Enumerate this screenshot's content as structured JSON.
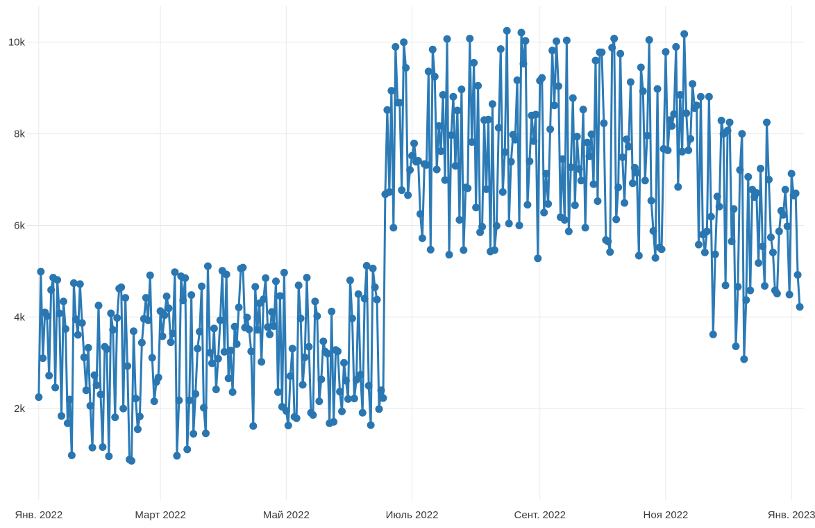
{
  "chart_data": {
    "type": "line",
    "title": "",
    "xlabel": "",
    "ylabel": "",
    "x_range": [
      "2021-12-26",
      "2023-01-07"
    ],
    "ylim": [
      0,
      10800
    ],
    "grid": true,
    "legend": "none",
    "x_ticks": [
      {
        "date": "2022-01-01",
        "label": "Янв. 2022"
      },
      {
        "date": "2022-03-01",
        "label": "Март 2022"
      },
      {
        "date": "2022-05-01",
        "label": "Май 2022"
      },
      {
        "date": "2022-07-01",
        "label": "Июль 2022"
      },
      {
        "date": "2022-09-01",
        "label": "Сент. 2022"
      },
      {
        "date": "2022-11-01",
        "label": "Ноя 2022"
      },
      {
        "date": "2023-01-01",
        "label": "Янв. 2023"
      }
    ],
    "y_ticks": [
      {
        "value": 2000,
        "label": "2k"
      },
      {
        "value": 4000,
        "label": "4k"
      },
      {
        "value": 6000,
        "label": "6k"
      },
      {
        "value": 8000,
        "label": "8k"
      },
      {
        "value": 10000,
        "label": "10k"
      }
    ],
    "series": [
      {
        "color": "#2c7bb6",
        "start_date": "2022-01-01",
        "values": [
          2250,
          4990,
          3100,
          4100,
          4020,
          2720,
          4590,
          4860,
          2460,
          4810,
          4080,
          1840,
          4340,
          3740,
          1680,
          2200,
          980,
          4740,
          3950,
          3610,
          4720,
          3870,
          3120,
          2400,
          3330,
          2060,
          1150,
          2730,
          2510,
          4250,
          2310,
          1160,
          3350,
          3300,
          960,
          4080,
          3720,
          1810,
          3980,
          4620,
          4650,
          2000,
          4420,
          2930,
          890,
          860,
          3690,
          2220,
          1550,
          1830,
          3440,
          3960,
          4420,
          3930,
          4910,
          3110,
          2160,
          2580,
          2680,
          4130,
          3580,
          4040,
          4450,
          4190,
          3450,
          3640,
          4980,
          970,
          2180,
          4890,
          4360,
          4850,
          1110,
          2180,
          4480,
          1450,
          2320,
          3310,
          3680,
          4670,
          2020,
          1460,
          5110,
          3220,
          2990,
          3750,
          2420,
          3090,
          3930,
          5010,
          3240,
          4930,
          2660,
          3270,
          2360,
          3790,
          3410,
          4210,
          5060,
          5080,
          3770,
          3990,
          3730,
          3250,
          1620,
          4660,
          3720,
          4300,
          3020,
          4390,
          4850,
          3780,
          3620,
          4110,
          3800,
          4780,
          2360,
          4460,
          2040,
          4970,
          1950,
          1630,
          2710,
          3310,
          1820,
          1790,
          4690,
          3970,
          2520,
          3120,
          4860,
          3350,
          1910,
          1860,
          4340,
          4020,
          2160,
          2640,
          3470,
          3240,
          3200,
          1680,
          4120,
          1710,
          3280,
          3250,
          2370,
          1940,
          3000,
          2610,
          2210,
          4800,
          3970,
          2220,
          2630,
          4500,
          2740,
          1910,
          4400,
          5120,
          2500,
          1640,
          5060,
          4650,
          4380,
          1990,
          2400,
          2230,
          6680,
          8520,
          6730,
          8940,
          5950,
          9900,
          8680,
          8680,
          6770,
          10000,
          9440,
          6660,
          7210,
          7520,
          7790,
          7390,
          7410,
          6250,
          5720,
          7340,
          7320,
          9360,
          5470,
          9840,
          9250,
          7220,
          8170,
          7620,
          8850,
          6990,
          10070,
          5360,
          7970,
          8810,
          7300,
          8510,
          6120,
          8970,
          5460,
          6830,
          6810,
          10080,
          7820,
          9550,
          6390,
          9050,
          5850,
          5970,
          8300,
          6790,
          8310,
          5430,
          8650,
          5460,
          5990,
          8130,
          9850,
          6730,
          7600,
          10250,
          6040,
          7390,
          7980,
          7870,
          9170,
          6000,
          10210,
          9530,
          10030,
          6450,
          7400,
          8400,
          7840,
          8420,
          5280,
          9160,
          9220,
          6280,
          7130,
          6470,
          8100,
          9820,
          8620,
          10020,
          9040,
          6180,
          7450,
          6120,
          10040,
          5870,
          7270,
          8780,
          6440,
          7940,
          7230,
          6980,
          8530,
          5950,
          7810,
          7510,
          7990,
          6900,
          9600,
          6530,
          9780,
          9780,
          8230,
          5680,
          5650,
          5420,
          9880,
          10080,
          6130,
          6830,
          9750,
          7490,
          6490,
          7880,
          7720,
          9130,
          6920,
          7260,
          7150,
          5340,
          9450,
          8930,
          6980,
          7960,
          10050,
          6540,
          5880,
          5290,
          8980,
          5520,
          5480,
          7670,
          9790,
          7640,
          8300,
          8170,
          8430,
          9900,
          6840,
          8850,
          7610,
          10180,
          8450,
          7640,
          7890,
          9090,
          8560,
          8620,
          5580,
          8810,
          5800,
          5410,
          5870,
          8810,
          6190,
          3620,
          5370,
          6630,
          6410,
          8290,
          8000,
          4690,
          8070,
          8250,
          5650,
          6360,
          3360,
          4660,
          7210,
          8000,
          3080,
          4370,
          7060,
          4580,
          6780,
          6620,
          6710,
          5180,
          7240,
          5540,
          4680,
          8250,
          7000,
          5740,
          5410,
          4580,
          4510,
          5870,
          6320,
          6230,
          6780,
          5980,
          4490,
          7130,
          6650,
          6700,
          4920,
          4220
        ]
      }
    ]
  }
}
